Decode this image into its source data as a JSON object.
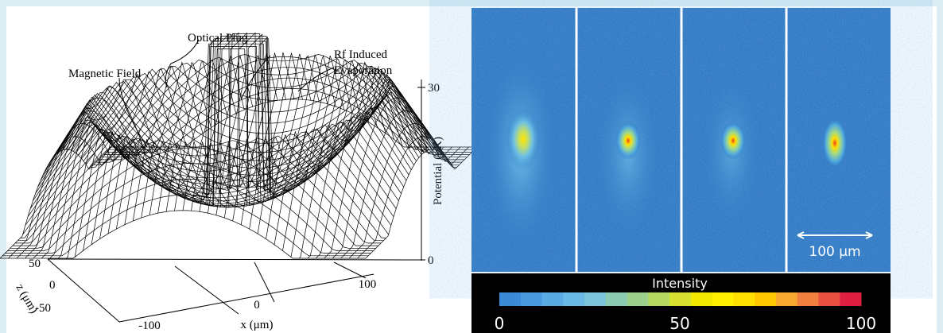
{
  "left_figure": {
    "labels": {
      "optical_plug": "Optical Plug",
      "magnetic_field": "Magnetic Field",
      "rf_line1": "Rf Induced",
      "rf_line2": "Evaporation"
    },
    "potential_axis": {
      "title": "Potential (μK)",
      "ticks": [
        "30",
        "0"
      ]
    },
    "z_axis": {
      "title": "z (μm)",
      "ticks": [
        "50",
        "0",
        "-50"
      ]
    },
    "x_axis": {
      "title": "x (μm)",
      "ticks": [
        "-100",
        "0",
        "100"
      ]
    }
  },
  "right_figure": {
    "scale_bar": "100 μm",
    "colorbar": {
      "title": "Intensity",
      "ticks": [
        "0",
        "50",
        "100"
      ]
    }
  }
}
